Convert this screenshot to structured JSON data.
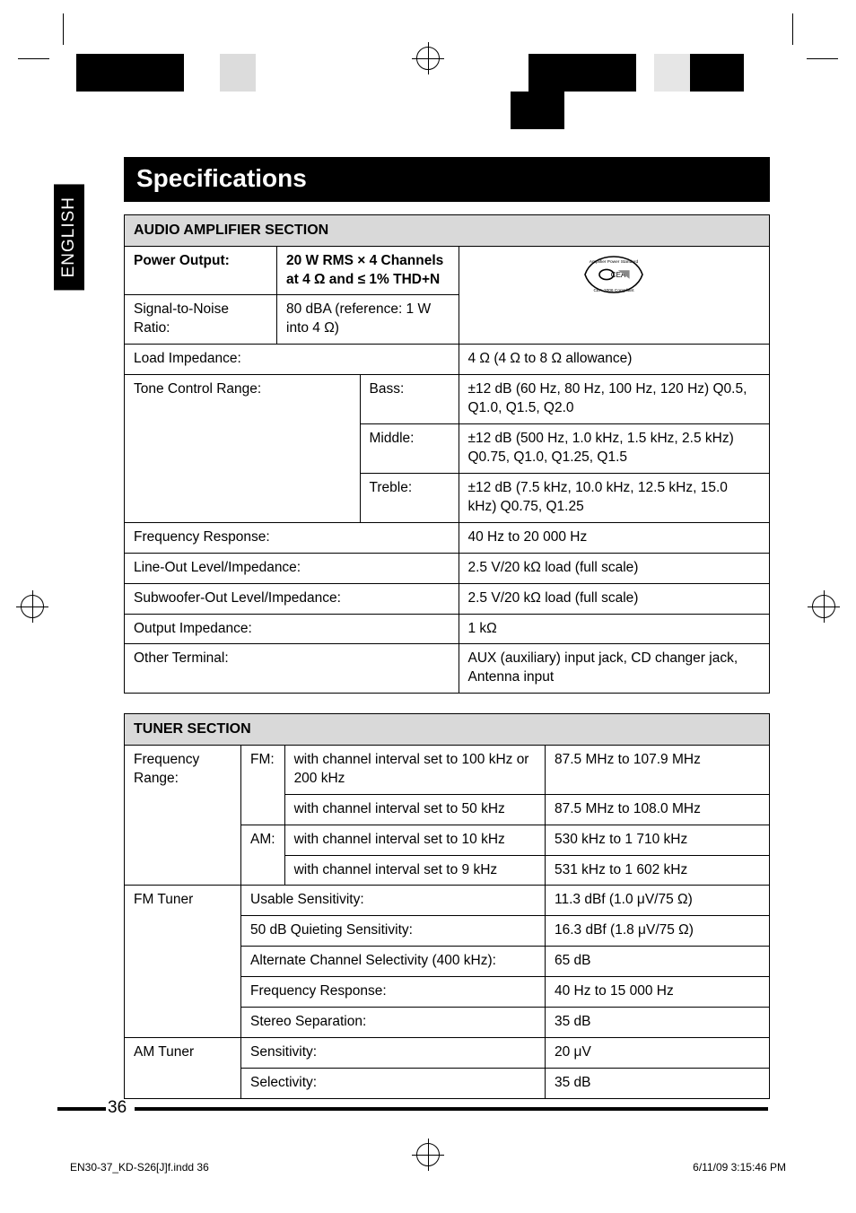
{
  "sidebar_label": "ENGLISH",
  "title": "Specifications",
  "amp": {
    "section_title": "AUDIO AMPLIFIER SECTION",
    "power_output_label": "Power Output:",
    "power_output_value": "20 W RMS × 4 Channels at 4 Ω and ≤ 1% THD+N",
    "snr_label": "Signal-to-Noise Ratio:",
    "snr_value": "80 dBA (reference: 1 W into 4 Ω)",
    "load_imp_label": "Load Impedance:",
    "load_imp_value": "4 Ω (4 Ω to 8 Ω allowance)",
    "tone_label": "Tone Control Range:",
    "bass_label": "Bass:",
    "bass_value": "±12 dB (60 Hz, 80 Hz, 100 Hz, 120 Hz) Q0.5, Q1.0, Q1.5, Q2.0",
    "middle_label": "Middle:",
    "middle_value": "±12 dB (500 Hz, 1.0 kHz, 1.5 kHz, 2.5 kHz) Q0.75, Q1.0, Q1.25, Q1.5",
    "treble_label": "Treble:",
    "treble_value": "±12 dB (7.5 kHz, 10.0 kHz, 12.5 kHz, 15.0 kHz) Q0.75, Q1.25",
    "freq_resp_label": "Frequency Response:",
    "freq_resp_value": "40 Hz to 20 000 Hz",
    "lineout_label": "Line-Out Level/Impedance:",
    "lineout_value": "2.5 V/20 kΩ load (full scale)",
    "subout_label": "Subwoofer-Out Level/Impedance:",
    "subout_value": "2.5 V/20 kΩ load (full scale)",
    "outimp_label": "Output Impedance:",
    "outimp_value": "1 kΩ",
    "other_label": "Other Terminal:",
    "other_value": "AUX (auxiliary) input jack, CD changer jack, Antenna input"
  },
  "tuner": {
    "section_title": "TUNER SECTION",
    "freq_range_label": "Frequency Range:",
    "fm_label": "FM:",
    "am_label": "AM:",
    "fm100_label": "with channel interval set to 100 kHz or 200 kHz",
    "fm100_value": "87.5 MHz to 107.9 MHz",
    "fm50_label": "with channel interval set to 50 kHz",
    "fm50_value": "87.5 MHz to 108.0 MHz",
    "am10_label": "with channel interval set to 10 kHz",
    "am10_value": "530 kHz to 1 710 kHz",
    "am9_label": "with channel interval set to 9 kHz",
    "am9_value": "531 kHz to 1 602 kHz",
    "fmtuner_label": "FM Tuner",
    "usable_label": "Usable Sensitivity:",
    "usable_value": "11.3 dBf (1.0 μV/75 Ω)",
    "quiet_label": "50 dB Quieting Sensitivity:",
    "quiet_value": "16.3 dBf (1.8 μV/75 Ω)",
    "acs_label": "Alternate Channel Selectivity (400 kHz):",
    "acs_value": "65 dB",
    "freqresp2_label": "Frequency Response:",
    "freqresp2_value": "40 Hz to 15 000 Hz",
    "stereo_label": "Stereo Separation:",
    "stereo_value": "35 dB",
    "amtuner_label": "AM Tuner",
    "sens_label": "Sensitivity:",
    "sens_value": "20 μV",
    "sel_label": "Selectivity:",
    "sel_value": "35 dB"
  },
  "page_number": "36",
  "footer_left": "EN30-37_KD-S26[J]f.indd   36",
  "footer_right": "6/11/09   3:15:46 PM",
  "bars": {
    "left_colors": [
      "#000000",
      "#000000",
      "#ffffff",
      "#ffffff",
      "#dcdcdc",
      "#ffffff"
    ],
    "left_widths": [
      60,
      60,
      20,
      20,
      40,
      20
    ],
    "right_colors": [
      "#ffffff",
      "#000000",
      "#000000",
      "#ffffff",
      "#e6e6e6",
      "#000000",
      "#000000"
    ],
    "right_widths": [
      20,
      60,
      60,
      20,
      40,
      60,
      60
    ]
  }
}
